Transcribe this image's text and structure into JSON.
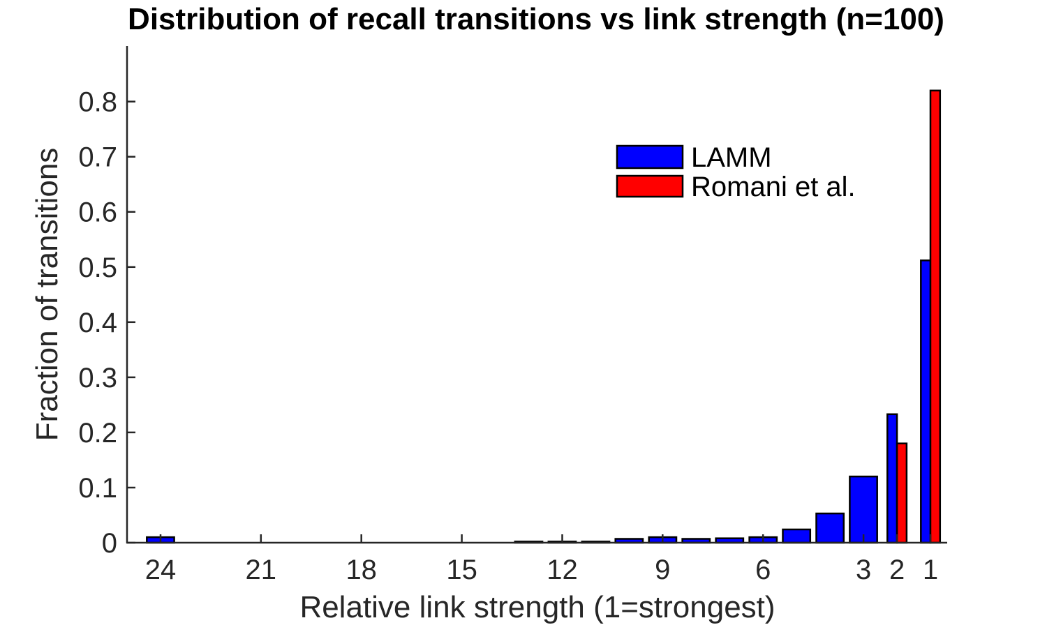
{
  "chart_data": {
    "type": "bar",
    "title": "Distribution of recall transitions vs link strength (n=100)",
    "xlabel": "Relative link strength (1=strongest)",
    "ylabel": "Fraction of transitions",
    "x_direction": "reversed",
    "xlim": [
      25,
      0.5
    ],
    "ylim": [
      0,
      0.9
    ],
    "x_ticks": [
      24,
      21,
      18,
      15,
      12,
      9,
      6,
      3,
      2,
      1
    ],
    "y_ticks": [
      0,
      0.1,
      0.2,
      0.3,
      0.4,
      0.5,
      0.6,
      0.7,
      0.8
    ],
    "y_tick_labels": [
      "0",
      "0.1",
      "0.2",
      "0.3",
      "0.4",
      "0.5",
      "0.6",
      "0.7",
      "0.8"
    ],
    "grid": false,
    "legend_position": "top-right",
    "series": [
      {
        "name": "LAMM",
        "color": "#0000ff",
        "x": [
          24,
          23,
          22,
          21,
          20,
          19,
          18,
          17,
          16,
          15,
          14,
          13,
          12,
          11,
          10,
          9,
          8,
          7,
          6,
          5,
          4,
          3,
          2,
          1
        ],
        "values": [
          0.01,
          0,
          0,
          0,
          0,
          0,
          0,
          0,
          0,
          0,
          0,
          0.002,
          0.002,
          0.002,
          0.007,
          0.01,
          0.007,
          0.008,
          0.01,
          0.024,
          0.053,
          0.12,
          0.233,
          0.512
        ]
      },
      {
        "name": "Romani et al.",
        "color": "#ff0000",
        "x": [
          2,
          1
        ],
        "values": [
          0.18,
          0.82
        ]
      }
    ]
  }
}
